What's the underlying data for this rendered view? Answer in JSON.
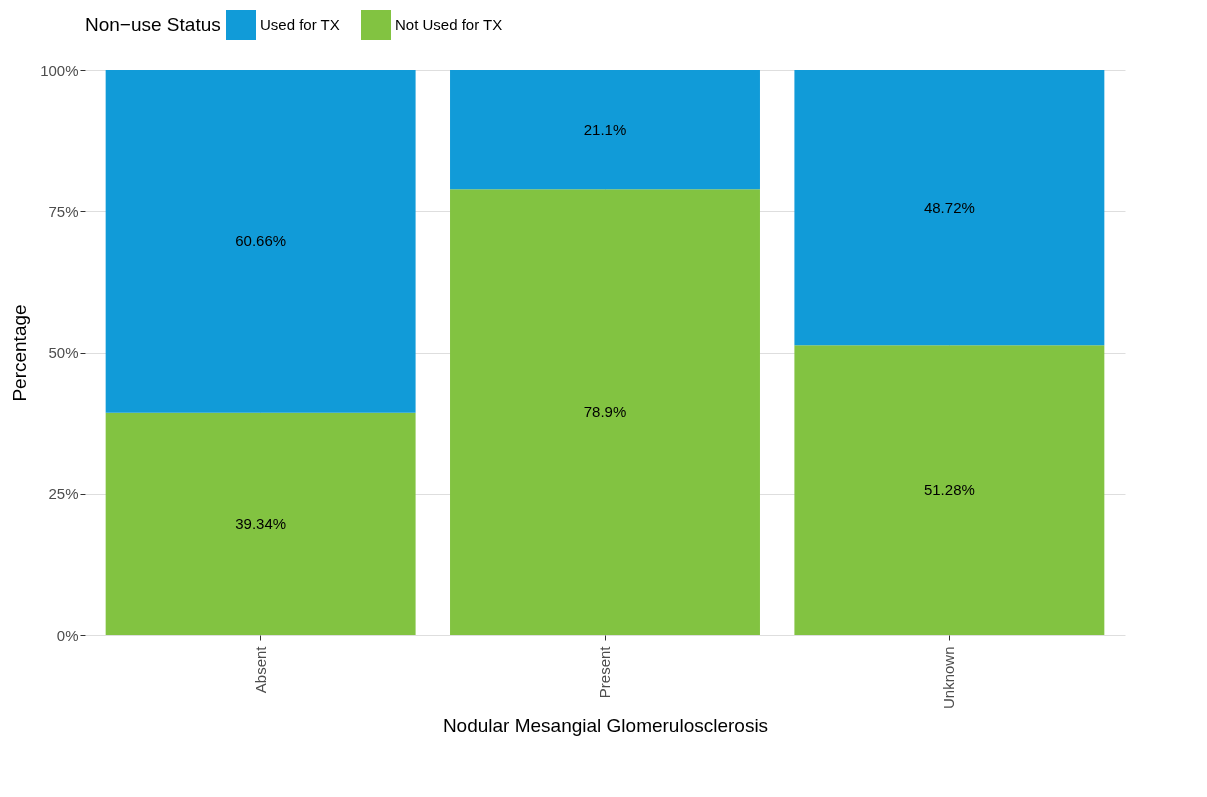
{
  "chart_data": {
    "type": "bar",
    "stacked": true,
    "xlabel": "Nodular Mesangial Glomerulosclerosis",
    "ylabel": "Percentage",
    "legend_title": "Non−use Status",
    "legend": "top",
    "grid": true,
    "categories": [
      "Absent",
      "Present",
      "Unknown"
    ],
    "series": [
      {
        "name": "Not Used for TX",
        "color": "#82c341",
        "values": [
          39.34,
          78.9,
          51.28
        ],
        "value_labels": [
          "39.34%",
          "78.9%",
          "51.28%"
        ]
      },
      {
        "name": "Used for TX",
        "color": "#119bd8",
        "values": [
          60.66,
          21.1,
          48.72
        ],
        "value_labels": [
          "60.66%",
          "21.1%",
          "48.72%"
        ]
      }
    ],
    "ylim": [
      0,
      100
    ],
    "yticks": [
      {
        "value": 0,
        "label": "0%"
      },
      {
        "value": 25,
        "label": "25%"
      },
      {
        "value": 50,
        "label": "50%"
      },
      {
        "value": 75,
        "label": "75%"
      },
      {
        "value": 100,
        "label": "100%"
      }
    ]
  }
}
